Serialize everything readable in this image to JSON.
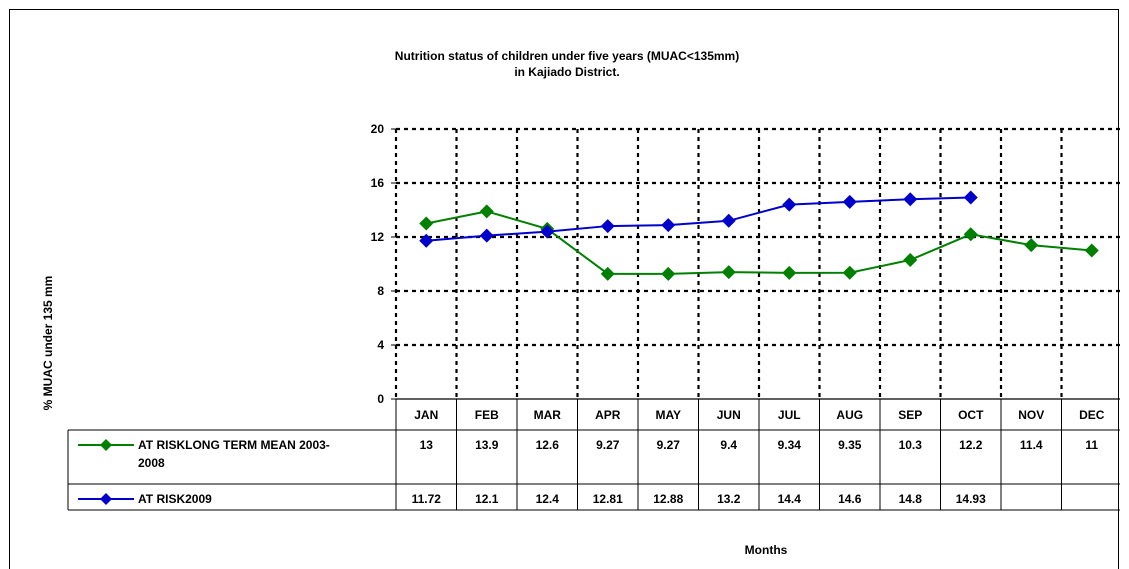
{
  "chart_data": {
    "type": "line",
    "title": [
      "Nutrition status of children under five years (MUAC<135mm)",
      "in Kajiado District."
    ],
    "xlabel": "Months",
    "ylabel": "% MUAC under 135 mm",
    "ylim": [
      0,
      20
    ],
    "yticks": [
      "0",
      "4",
      "8",
      "12",
      "16",
      "20"
    ],
    "grid": true,
    "categories": [
      "JAN",
      "FEB",
      "MAR",
      "APR",
      "MAY",
      "JUN",
      "JUL",
      "AUG",
      "SEP",
      "OCT",
      "NOV",
      "DEC"
    ],
    "series": [
      {
        "name": [
          "AT RISKLONG TERM MEAN 2003-",
          "2008"
        ],
        "color": "#008000",
        "values": [
          13,
          13.9,
          12.6,
          9.27,
          9.27,
          9.4,
          9.34,
          9.35,
          10.3,
          12.2,
          11.4,
          11
        ],
        "labels": [
          "13",
          "13.9",
          "12.6",
          "9.27",
          "9.27",
          "9.4",
          "9.34",
          "9.35",
          "10.3",
          "12.2",
          "11.4",
          "11"
        ]
      },
      {
        "name": [
          "AT RISK2009"
        ],
        "color": "#0000cc",
        "values": [
          11.72,
          12.1,
          12.4,
          12.81,
          12.88,
          13.2,
          14.4,
          14.6,
          14.8,
          14.93,
          null,
          null
        ],
        "labels": [
          "11.72",
          "12.1",
          "12.4",
          "12.81",
          "12.88",
          "13.2",
          "14.4",
          "14.6",
          "14.8",
          "14.93",
          "",
          ""
        ]
      }
    ]
  }
}
